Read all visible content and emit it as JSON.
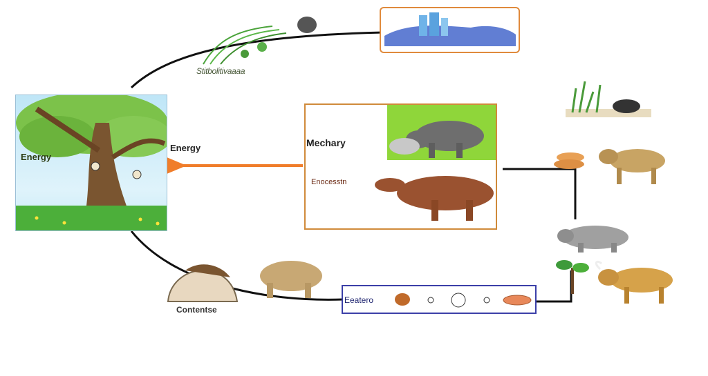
{
  "labels": {
    "energy_left": "Energy",
    "energy_mid": "Energy",
    "mechanism": "Mechary",
    "decomposition": "Enocesstn",
    "producers": "Stitbolitivaaaa",
    "consumers": "Contentse",
    "bottom_box": "Eeatero"
  },
  "colors": {
    "cycle_line": "#111111",
    "energy_arrow": "#f07d2a",
    "water_box_border": "#e08a3c",
    "center_box_border": "#d08a3a",
    "bottom_box_border": "#3b3fa8",
    "grass": "#8fd63a",
    "soil": "#9a5230"
  },
  "icons": [
    "tree-icon",
    "grass-icon",
    "rock-icon",
    "water-reservoir-icon",
    "rhino-icon",
    "decomposer-animal-icon",
    "grass-tuft-icon",
    "food-pellet-icon",
    "lion-icon",
    "hippo-icon",
    "seedling-icon",
    "bull-icon",
    "shell-icon",
    "elephant-icon",
    "small-creature-icon"
  ]
}
